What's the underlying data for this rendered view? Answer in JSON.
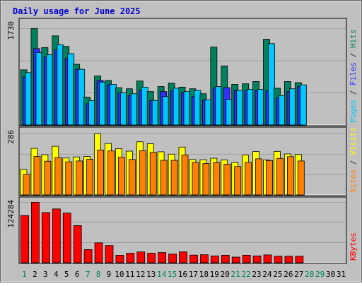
{
  "chart_data": {
    "type": "bar",
    "title": "Daily usage for June 2025",
    "days": [
      "1",
      "2",
      "3",
      "4",
      "5",
      "6",
      "7",
      "8",
      "9",
      "10",
      "11",
      "12",
      "13",
      "14",
      "15",
      "16",
      "17",
      "18",
      "19",
      "20",
      "21",
      "22",
      "23",
      "24",
      "25",
      "26",
      "27",
      "28",
      "29",
      "30",
      "31"
    ],
    "weekend_days": [
      "1",
      "7",
      "8",
      "14",
      "15",
      "21",
      "22",
      "28",
      "29"
    ],
    "panels": [
      {
        "name": "top",
        "ymax_label": "1730",
        "ymax": 1730,
        "series": [
          {
            "name": "Hits",
            "color": "#00805c",
            "values": [
              990,
              1730,
              1390,
              1600,
              1410,
              1090,
              500,
              880,
              800,
              670,
              650,
              790,
              600,
              690,
              750,
              680,
              650,
              560,
              1400,
              1060,
              730,
              740,
              780,
              1540,
              660,
              780,
              760
            ]
          },
          {
            "name": "Files",
            "color": "#3030ff",
            "values": [
              860,
              1370,
              1220,
              1350,
              1200,
              1000,
              380,
              800,
              720,
              580,
              530,
              620,
              440,
              600,
              620,
              580,
              510,
              450,
              670,
              670,
              620,
              620,
              620,
              620,
              490,
              600,
              690
            ]
          },
          {
            "name": "Pages",
            "color": "#00c8ff",
            "values": [
              940,
              1300,
              1260,
              1440,
              1280,
              1000,
              440,
              770,
              730,
              580,
              560,
              680,
              440,
              510,
              660,
              600,
              620,
              450,
              690,
              460,
              620,
              640,
              640,
              1460,
              530,
              650,
              720
            ]
          }
        ],
        "ylabel": [
          {
            "text": "Pages",
            "color": "#00c8ff"
          },
          {
            "text": " / ",
            "color": "#303030"
          },
          {
            "text": "Files",
            "color": "#3030ff"
          },
          {
            "text": " / ",
            "color": "#303030"
          },
          {
            "text": "Hits",
            "color": "#00805c"
          }
        ]
      },
      {
        "name": "middle",
        "ymax_label": "286",
        "ymax": 286,
        "series": [
          {
            "name": "Visits",
            "color": "#ffff00",
            "values": [
              119,
              218,
              188,
              228,
              173,
              178,
              180,
              286,
              241,
              217,
              205,
              249,
              240,
              202,
              191,
              224,
              166,
              165,
              172,
              164,
              152,
              187,
              203,
              164,
              204,
              192,
              189
            ]
          },
          {
            "name": "Sites",
            "color": "#ff8000",
            "values": [
              96,
              180,
              158,
              175,
              155,
              159,
              167,
              210,
              206,
              177,
              166,
              207,
              199,
              162,
              162,
              187,
              152,
              147,
              151,
              144,
              133,
              152,
              169,
              161,
              171,
              179,
              159
            ]
          }
        ],
        "ylabel": [
          {
            "text": "Sites",
            "color": "#ff8000"
          },
          {
            "text": " / ",
            "color": "#303030"
          },
          {
            "text": "Visits",
            "color": "#ffff00"
          }
        ]
      },
      {
        "name": "bottom",
        "ymax_label": "124284",
        "ymax": 124284,
        "series": [
          {
            "name": "KBytes",
            "color": "#ff0000",
            "values": [
              96900,
              124284,
              103100,
              110600,
              102100,
              76300,
              27000,
              40900,
              35300,
              15400,
              19500,
              22200,
              19500,
              20900,
              17800,
              22200,
              15700,
              16400,
              14000,
              15400,
              11600,
              15400,
              14000,
              16100,
              13300,
              13300,
              13300
            ]
          }
        ],
        "ylabel": [
          {
            "text": "KBytes",
            "color": "#ff0000"
          }
        ]
      }
    ]
  }
}
